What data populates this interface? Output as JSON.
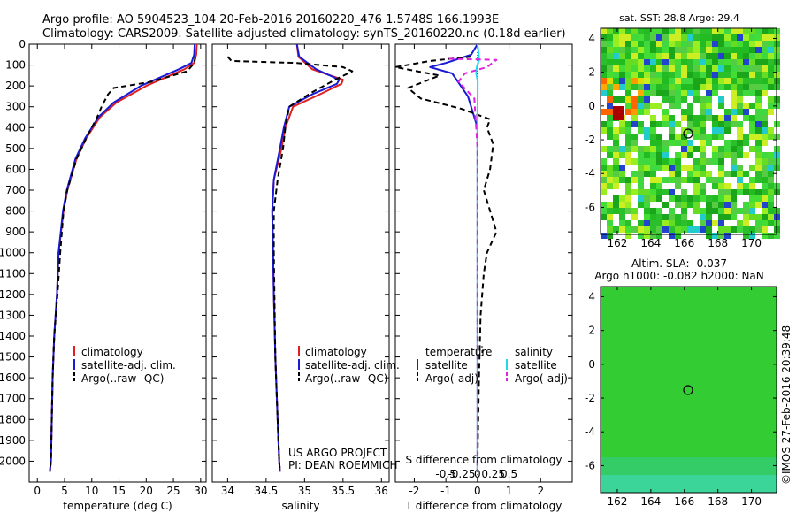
{
  "header": {
    "line1": "Argo profile: AO 5904523_104 20-Feb-2016 20160220_476 1.5748S 166.1993E",
    "line2": "Climatology: CARS2009. Satellite-adjusted climatology: synTS_20160220.nc (0.18d earlier)"
  },
  "colors": {
    "climatology": "#e02020",
    "satellite": "#1a1ad6",
    "argo": "#000000",
    "salinity_satellite": "#22d8ee",
    "salinity_argo": "#e020e0",
    "ocean_green": "#33cc33"
  },
  "chart_data": [
    {
      "type": "line",
      "name": "temperature-profile",
      "xlabel": "temperature (deg C)",
      "ylabel": "",
      "xlim": [
        -1.5,
        31
      ],
      "ylim": [
        2100,
        0
      ],
      "xticks": [
        "0",
        "5",
        "10",
        "15",
        "20",
        "25",
        "30"
      ],
      "xtick_values": [
        0,
        5,
        10,
        15,
        20,
        25,
        30
      ],
      "yticks": [
        "0",
        "100",
        "200",
        "300",
        "400",
        "500",
        "600",
        "700",
        "800",
        "900",
        "1000",
        "1100",
        "1200",
        "1300",
        "1400",
        "1500",
        "1600",
        "1700",
        "1800",
        "1900",
        "2000"
      ],
      "ytick_values": [
        0,
        100,
        200,
        300,
        400,
        500,
        600,
        700,
        800,
        900,
        1000,
        1100,
        1200,
        1300,
        1400,
        1500,
        1600,
        1700,
        1800,
        1900,
        2000
      ],
      "legend": [
        "climatology",
        "satellite-adj. clim.",
        "Argo(..raw -QC)"
      ],
      "series": [
        {
          "name": "climatology",
          "color": "#e02020",
          "dash": "",
          "x": [
            29.3,
            29.2,
            28.8,
            27.0,
            20.0,
            14.5,
            11.5,
            9.0,
            7.2,
            5.5,
            4.8,
            3.9,
            3.6,
            3.1,
            2.8,
            2.5,
            2.3
          ],
          "y": [
            0,
            50,
            90,
            120,
            200,
            280,
            350,
            450,
            550,
            700,
            800,
            1000,
            1200,
            1400,
            1600,
            2000,
            2050
          ]
        },
        {
          "name": "satellite-adj. clim.",
          "color": "#1a1ad6",
          "dash": "",
          "x": [
            28.9,
            28.8,
            28.3,
            26.0,
            19.0,
            14.0,
            11.2,
            8.8,
            7.0,
            5.4,
            4.7,
            3.9,
            3.6,
            3.1,
            2.8,
            2.5,
            2.3
          ],
          "y": [
            0,
            50,
            90,
            120,
            200,
            280,
            350,
            450,
            550,
            700,
            800,
            1000,
            1200,
            1400,
            1600,
            2000,
            2050
          ]
        },
        {
          "name": "Argo(..raw -QC)",
          "color": "#000000",
          "dash": "6,4",
          "x": [
            29.0,
            28.9,
            28.5,
            27.5,
            21.0,
            14.0,
            13.0,
            11.8,
            11.0,
            9.0,
            7.2,
            5.5,
            4.8,
            4.2,
            3.7,
            3.1,
            2.8,
            2.5,
            2.3
          ],
          "y": [
            60,
            80,
            100,
            130,
            180,
            210,
            240,
            300,
            350,
            450,
            550,
            700,
            800,
            1000,
            1200,
            1400,
            1600,
            2000,
            2050
          ]
        }
      ]
    },
    {
      "type": "line",
      "name": "salinity-profile",
      "xlabel": "salinity",
      "ylabel": "",
      "xlim": [
        33.8,
        36.1
      ],
      "ylim": [
        2100,
        0
      ],
      "xticks": [
        "34",
        "34.5",
        "35",
        "35.5",
        "36"
      ],
      "xtick_values": [
        34,
        34.5,
        35,
        35.5,
        36
      ],
      "legend": [
        "climatology",
        "satellite-adj. clim.",
        "Argo(..raw -QC)"
      ],
      "series": [
        {
          "name": "climatology",
          "color": "#e02020",
          "dash": "",
          "x": [
            34.9,
            34.92,
            35.1,
            35.5,
            35.48,
            35.2,
            34.85,
            34.75,
            34.7,
            34.6,
            34.58,
            34.59,
            34.6,
            34.62,
            34.65,
            34.67,
            34.68
          ],
          "y": [
            0,
            60,
            120,
            170,
            190,
            240,
            300,
            400,
            500,
            650,
            800,
            1000,
            1200,
            1500,
            1800,
            2000,
            2050
          ]
        },
        {
          "name": "satellite-adj. clim.",
          "color": "#1a1ad6",
          "dash": "",
          "x": [
            34.9,
            34.93,
            35.15,
            35.45,
            35.42,
            35.1,
            34.8,
            34.73,
            34.68,
            34.6,
            34.58,
            34.59,
            34.6,
            34.62,
            34.65,
            34.67,
            34.68
          ],
          "y": [
            0,
            60,
            120,
            170,
            190,
            240,
            300,
            400,
            500,
            650,
            800,
            1000,
            1200,
            1500,
            1800,
            2000,
            2050
          ]
        },
        {
          "name": "Argo(..raw -QC)",
          "color": "#000000",
          "dash": "6,4",
          "x": [
            34.0,
            34.05,
            34.9,
            35.5,
            35.62,
            35.4,
            35.1,
            34.8,
            34.75,
            34.72,
            34.65,
            34.6,
            34.6,
            34.62,
            34.65,
            34.67,
            34.68
          ],
          "y": [
            60,
            80,
            90,
            110,
            130,
            170,
            230,
            300,
            400,
            500,
            650,
            800,
            1000,
            1500,
            1800,
            2000,
            2050
          ]
        }
      ]
    },
    {
      "type": "line",
      "name": "difference-profile",
      "xlabel": "T difference from climatology",
      "title_bottom": "S difference from climatology",
      "xlim": [
        -2.6,
        3
      ],
      "ylim": [
        2100,
        0
      ],
      "xticks": [
        "-2",
        "-1",
        "0",
        "1",
        "2"
      ],
      "xtick_values": [
        -2,
        -1,
        0,
        1,
        2
      ],
      "top_scale_ticks": [
        "-0.5",
        "-0.25",
        "0",
        "0.25",
        "0.5"
      ],
      "top_scale_values": [
        -0.5,
        -0.25,
        0,
        0.25,
        0.5
      ],
      "legend": [
        {
          "group": "temperature",
          "items": [
            "satellite",
            "Argo(-adj)"
          ]
        },
        {
          "group": "salinity",
          "items": [
            "satellite",
            "Argo(-adj)"
          ]
        }
      ],
      "series": [
        {
          "name": "temperature satellite",
          "color": "#1a1ad6",
          "dash": "",
          "x": [
            0,
            -0.2,
            -1.0,
            -1.5,
            -0.8,
            -0.3,
            0,
            0,
            0,
            0,
            0
          ],
          "y": [
            0,
            50,
            90,
            110,
            140,
            250,
            400,
            800,
            1400,
            2000,
            2050
          ]
        },
        {
          "name": "temperature Argo(-adj)",
          "color": "#000000",
          "dash": "6,4",
          "x": [
            -0.2,
            -1.5,
            -2.6,
            -1.2,
            -2.2,
            -1.8,
            -0.5,
            0.4,
            0.3,
            0.5,
            0.4,
            0.2,
            0.6,
            0.3,
            0.2,
            0.1,
            0.05,
            0,
            0
          ],
          "y": [
            60,
            80,
            110,
            150,
            210,
            260,
            310,
            360,
            400,
            480,
            600,
            700,
            900,
            1000,
            1100,
            1300,
            1600,
            2000,
            2050
          ]
        },
        {
          "name": "salinity satellite",
          "color": "#22d8ee",
          "dash": "",
          "x": [
            0,
            0.05,
            0.04,
            -0.02,
            -0.04,
            0.01,
            0,
            0,
            0,
            0,
            0
          ],
          "y": [
            0,
            60,
            80,
            110,
            140,
            180,
            300,
            800,
            1400,
            2000,
            2050
          ]
        },
        {
          "name": "salinity Argo(-adj)",
          "color": "#e020e0",
          "dash": "6,4",
          "x": [
            -0.9,
            0.6,
            0.3,
            -0.4,
            -0.6,
            -0.1,
            0,
            0,
            0
          ],
          "y": [
            70,
            75,
            110,
            140,
            180,
            260,
            500,
            1000,
            2050
          ]
        }
      ]
    },
    {
      "type": "heatmap",
      "name": "sst-map",
      "title": "sat. SST: 28.8  Argo: 29.4",
      "xticks": [
        "162",
        "164",
        "166",
        "168",
        "170"
      ],
      "xtick_values": [
        162,
        164,
        166,
        168,
        170
      ],
      "yticks": [
        "4",
        "2",
        "0",
        "-2",
        "-4",
        "-6"
      ],
      "ytick_values": [
        4,
        2,
        0,
        -2,
        -4,
        -6
      ],
      "xlim": [
        161,
        171.5
      ],
      "ylim": [
        -7.6,
        4.6
      ],
      "marker": {
        "lon": 166.2,
        "lat": -1.57
      }
    },
    {
      "type": "heatmap",
      "name": "sla-map",
      "title_line1": "Altim. SLA: -0.037",
      "title_line2": "Argo h1000: -0.082  h2000: NaN",
      "xticks": [
        "162",
        "164",
        "166",
        "168",
        "170"
      ],
      "xtick_values": [
        162,
        164,
        166,
        168,
        170
      ],
      "yticks": [
        "4",
        "2",
        "0",
        "-2",
        "-4",
        "-6"
      ],
      "ytick_values": [
        4,
        2,
        0,
        -2,
        -4,
        -6
      ],
      "xlim": [
        161,
        171.5
      ],
      "ylim": [
        -7.6,
        4.6
      ],
      "marker": {
        "lon": 166.2,
        "lat": -1.57
      }
    }
  ],
  "annotations": {
    "project": "US ARGO PROJECT",
    "pi": "PI: DEAN ROEMMICH",
    "copyright": "©IMOS 27-Feb-2016 20:39:48"
  }
}
